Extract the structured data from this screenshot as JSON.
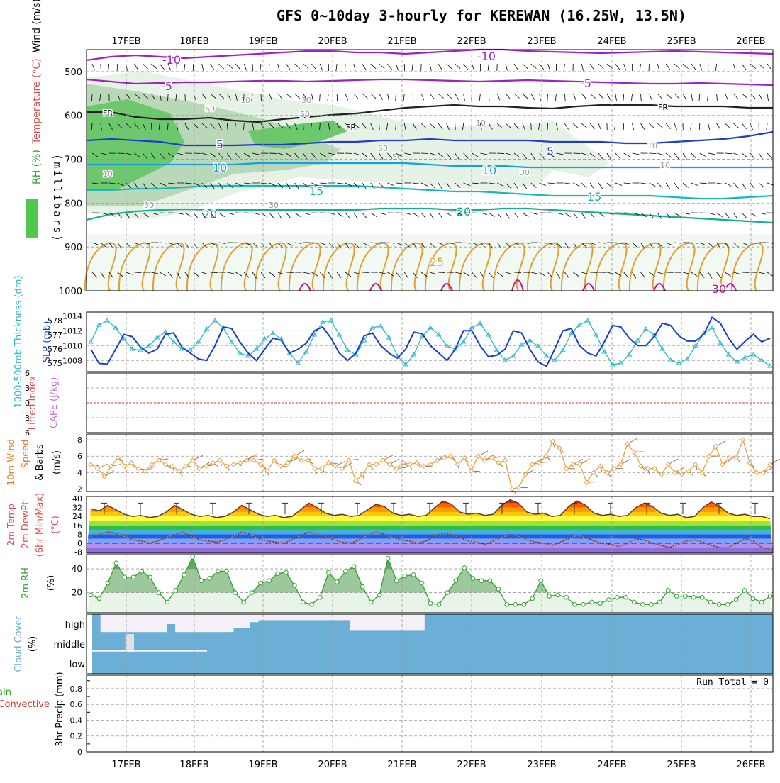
{
  "title": "GFS 0~10day 3-hourly for KEREWAN (16.25W, 13.5N)",
  "colors": {
    "purple": "#a020c8",
    "darkblue": "#1e3cc8",
    "blue": "#2a70d8",
    "lightblue": "#18a0d8",
    "cyan": "#18b8b8",
    "teal": "#10b090",
    "orange": "#e0a030",
    "darkorange": "#d07020",
    "magenta": "#c8108c",
    "green": "#50c850",
    "gray": "#aaaaaa",
    "slpblue": "#1840d0",
    "thkcyan": "#30b8c8",
    "windorange": "#f0a040",
    "rhgreen": "#30a030",
    "cloud": "#6baed6",
    "red": "#e03030"
  },
  "chart_data": [
    {
      "type": "contour",
      "panel": "upper-air",
      "title": "Wind (m/s) Temperature (°C) RH (%)",
      "ylabel_parts": [
        {
          "text": "Wind (m/s)",
          "color": "#000000"
        },
        {
          "text": "Temperature (°C)",
          "color": "#e05050"
        },
        {
          "text": "RH (%)",
          "color": "#30a030"
        }
      ],
      "ylabel2": "(millibars)",
      "y_ticks": [
        500,
        600,
        700,
        800,
        900,
        1000
      ],
      "ylim": [
        450,
        1000
      ],
      "x_dates": [
        "17FEB",
        "18FEB",
        "19FEB",
        "20FEB",
        "21FEB",
        "22FEB",
        "23FEB",
        "24FEB",
        "25FEB",
        "26FEB"
      ],
      "isotherm_labels": [
        "-10",
        "-10",
        "-5",
        "-5",
        "FR",
        "FR",
        "FR",
        "5",
        "5",
        "10",
        "10",
        "15",
        "15",
        "20",
        "20",
        "25",
        "30",
        "10",
        "10",
        "30",
        "50",
        "50",
        "10",
        "50",
        "30",
        "10",
        "10",
        "30",
        "50",
        "50"
      ]
    },
    {
      "type": "line",
      "panel": "slp-thickness",
      "ylabel_left": "1000-500mb Thickness (dm)",
      "ylabel_right": "SLP (mb)",
      "left_ticks": [
        "578",
        "577",
        "576",
        "575"
      ],
      "right_ticks": [
        "1014",
        "1012",
        "1010",
        "1008"
      ],
      "series": [
        {
          "name": "SLP",
          "values": [
            1009.5,
            1007.6,
            1007.5,
            1009.5,
            1011.5,
            1011.2,
            1009.8,
            1009.0,
            1009.5,
            1011.5,
            1011.7,
            1009.8,
            1009.0,
            1008.2,
            1008.0,
            1010.0,
            1012.5,
            1012.3,
            1010.5,
            1009.0,
            1008.0,
            1009.5,
            1011.0,
            1010.7,
            1009.0,
            1009.5,
            1010.3,
            1012.0,
            1012.5,
            1011.0,
            1009.0,
            1008.0,
            1009.0,
            1011.3,
            1011.7,
            1010.0,
            1009.0,
            1008.3,
            1009.5,
            1011.8,
            1011.6,
            1010.0,
            1009.0,
            1008.0,
            1009.5,
            1012.0,
            1012.0,
            1010.0,
            1008.5,
            1008.7,
            1009.5,
            1012.0,
            1011.7,
            1009.5,
            1007.8,
            1007.2,
            1009.5,
            1012.0,
            1012.3,
            1010.0,
            1009.0,
            1008.6,
            1010.5,
            1012.7,
            1012.5,
            1011.0,
            1010.0,
            1010.0,
            1011.2,
            1013.0,
            1012.7,
            1011.3,
            1010.6,
            1010.6,
            1011.5,
            1013.8,
            1013.0,
            1011.0,
            1009.5,
            1010.6,
            1011.5,
            1010.5,
            1011.0
          ]
        },
        {
          "name": "Thickness",
          "values": [
            576.5,
            577.7,
            578.0,
            577.5,
            576.7,
            576.0,
            575.9,
            576.2,
            576.8,
            577.2,
            576.5,
            576.0,
            575.9,
            576.5,
            577.4,
            578.0,
            577.5,
            576.5,
            575.7,
            575.5,
            576.0,
            576.7,
            577.1,
            576.7,
            575.7,
            575.0,
            575.8,
            577.0,
            577.9,
            578.0,
            577.0,
            575.9,
            575.6,
            576.6,
            577.5,
            577.6,
            576.8,
            575.5,
            574.9,
            575.6,
            576.9,
            577.5,
            577.0,
            576.2,
            576.0,
            576.5,
            577.5,
            577.8,
            577.0,
            575.9,
            575.2,
            575.5,
            576.3,
            576.6,
            576.2,
            575.5,
            575.2,
            575.9,
            577.1,
            577.7,
            578.0,
            577.0,
            575.8,
            574.9,
            575.0,
            575.6,
            576.6,
            577.4,
            577.0,
            576.0,
            575.2,
            575.0,
            575.3,
            576.2,
            577.1,
            577.5,
            576.4,
            575.6,
            575.1,
            575.4,
            575.6,
            575.2,
            574.8
          ]
        }
      ]
    },
    {
      "type": "line",
      "panel": "stability",
      "ylabel_parts": [
        {
          "text": "Lifted Index",
          "color": "#e05050"
        },
        {
          "text": "CAPE (J/kg)",
          "color": "#c070d0"
        }
      ],
      "y_ticks": [
        "-6",
        "-3",
        "0",
        "3",
        "6"
      ]
    },
    {
      "type": "line",
      "panel": "wind10m",
      "ylabel_parts": [
        {
          "text": "10m Wind",
          "color": "#e08030"
        },
        {
          "text": "Speed",
          "color": "#e08030"
        },
        {
          "text": "& Barbs",
          "color": "#000000"
        },
        {
          "text": "(m/s)",
          "color": "#000000"
        }
      ],
      "y_ticks": [
        "8",
        "6",
        "4",
        "2"
      ],
      "series": [
        {
          "name": "10m Wind Speed",
          "values": [
            5.0,
            4.5,
            3.5,
            4.8,
            5.8,
            4.8,
            5.2,
            4.5,
            4.2,
            5.0,
            5.5,
            5.0,
            4.8,
            4.2,
            4.8,
            5.5,
            4.5,
            4.8,
            5.2,
            5.5,
            4.8,
            5.0,
            5.2,
            5.5,
            5.5,
            5.0,
            4.2,
            5.5,
            4.8,
            5.2,
            6.0,
            5.5,
            5.5,
            4.5,
            4.5,
            5.2,
            4.8,
            4.5,
            5.5,
            3.0,
            3.8,
            5.0,
            5.0,
            5.5,
            5.0,
            4.5,
            5.2,
            5.0,
            5.2,
            4.8,
            5.0,
            5.5,
            5.8,
            6.0,
            5.0,
            5.8,
            4.2,
            6.0,
            5.5,
            5.8,
            5.2,
            5.5,
            2.0,
            2.2,
            3.8,
            5.0,
            5.2,
            6.0,
            7.8,
            7.0,
            4.5,
            5.0,
            5.0,
            2.8,
            4.0,
            4.8,
            4.0,
            4.5,
            5.0,
            7.5,
            6.5,
            4.8,
            4.5,
            4.5,
            3.8,
            5.0,
            4.0,
            3.8,
            4.2,
            5.0,
            4.0,
            6.0,
            7.2,
            5.0,
            5.8,
            5.8,
            8.0,
            5.2,
            4.0,
            4.0,
            5.0
          ]
        }
      ]
    },
    {
      "type": "area",
      "panel": "temperature",
      "ylabel_parts": [
        {
          "text": "2m Temp",
          "color": "#e05050"
        },
        {
          "text": "2m DewPt",
          "color": "#e05050"
        },
        {
          "text": "(6hr Min/Max)",
          "color": "#e05050"
        },
        {
          "text": "(°C)",
          "color": "#e05050"
        }
      ],
      "y_ticks": [
        "40",
        "32",
        "24",
        "16",
        "8",
        "0",
        "-8"
      ],
      "series": [
        {
          "name": "2m Temp",
          "values": [
            31,
            29,
            34,
            30,
            26,
            24,
            25,
            23,
            24,
            28,
            34,
            30,
            26,
            24,
            25,
            23,
            24,
            28,
            34,
            30,
            26,
            24,
            25,
            23,
            24,
            30,
            36,
            32,
            27,
            25,
            26,
            24,
            25,
            30,
            35,
            33,
            27,
            25,
            26,
            24,
            25,
            32,
            38,
            35,
            28,
            26,
            27,
            25,
            26,
            34,
            39,
            36,
            28,
            26,
            27,
            24,
            25,
            33,
            38,
            34,
            27,
            25,
            26,
            24,
            25,
            32,
            36,
            33,
            27,
            25,
            26,
            23,
            24,
            32,
            37,
            33,
            27,
            25,
            26,
            24,
            24,
            22
          ]
        },
        {
          "name": "2m DewPt",
          "values": [
            6,
            8,
            10,
            9,
            6,
            3,
            2,
            0,
            2,
            5,
            8,
            10,
            6,
            3,
            2,
            1,
            3,
            6,
            10,
            8,
            4,
            2,
            1,
            0,
            3,
            7,
            10,
            8,
            6,
            3,
            1,
            0,
            3,
            7,
            10,
            8,
            5,
            3,
            2,
            0,
            2,
            6,
            9,
            8,
            5,
            2,
            1,
            -1,
            2,
            5,
            8,
            6,
            3,
            1,
            0,
            -2,
            1,
            4,
            7,
            5,
            2,
            0,
            -1,
            -3,
            0,
            4,
            3,
            0,
            -2,
            -4,
            -1,
            2,
            3,
            1,
            -2,
            -4,
            -4,
            0,
            4,
            2,
            -4,
            -5
          ]
        }
      ]
    },
    {
      "type": "area",
      "panel": "rh",
      "ylabel": "2m RH",
      "ylabel_unit": "(%)",
      "y_ticks": [
        "40",
        "20"
      ],
      "series": [
        {
          "name": "2m RH",
          "values": [
            18,
            15,
            28,
            45,
            33,
            33,
            38,
            33,
            20,
            12,
            22,
            35,
            50,
            30,
            32,
            38,
            38,
            20,
            12,
            20,
            28,
            30,
            36,
            37,
            26,
            12,
            10,
            16,
            37,
            29,
            38,
            42,
            25,
            12,
            18,
            49,
            30,
            34,
            35,
            28,
            11,
            10,
            20,
            30,
            41,
            32,
            30,
            30,
            23,
            10,
            10,
            10,
            15,
            30,
            17,
            18,
            16,
            10,
            10,
            12,
            11,
            14,
            16,
            16,
            12,
            10,
            10,
            12,
            22,
            17,
            17,
            16,
            16,
            12,
            10,
            10,
            14,
            22,
            15,
            12,
            17
          ]
        }
      ]
    },
    {
      "type": "area",
      "panel": "cloud",
      "ylabel": "Cloud Cover",
      "ylabel_unit": "(%)",
      "levels": [
        "high",
        "middle",
        "low"
      ],
      "high": [
        100,
        10,
        10,
        10,
        10,
        10,
        10,
        10,
        10,
        50,
        10,
        10,
        10,
        10,
        10,
        10,
        10,
        30,
        30,
        60,
        70,
        70,
        70,
        70,
        70,
        70,
        70,
        70,
        70,
        70,
        70,
        20,
        20,
        20,
        20,
        20,
        20,
        20,
        20,
        20,
        20,
        20,
        20,
        20,
        20,
        20,
        20,
        20,
        20,
        20,
        10,
        10,
        10,
        10,
        20,
        20,
        20,
        20,
        20,
        20,
        30,
        30,
        30,
        30,
        30,
        30,
        30,
        30,
        30,
        30,
        30,
        30,
        30,
        30,
        30,
        30,
        30,
        30,
        30,
        30,
        30,
        30
      ],
      "middle": [
        100,
        100,
        100,
        100,
        0,
        100,
        100,
        100,
        100,
        100,
        100,
        100,
        100,
        100,
        100,
        100,
        100,
        100,
        100,
        100,
        100,
        100,
        100,
        100,
        100,
        100,
        100,
        100,
        100,
        100,
        100,
        100,
        100,
        100,
        100,
        100,
        100,
        100,
        100,
        100,
        100,
        100,
        100,
        100,
        100,
        100,
        100,
        100,
        100,
        100,
        100,
        100,
        100,
        100,
        100,
        100,
        100,
        100,
        100,
        100,
        100,
        100,
        100,
        100,
        100,
        100,
        100,
        100,
        100,
        100,
        100,
        100,
        100,
        100,
        100,
        100,
        100,
        100,
        100,
        100,
        100,
        100
      ]
    },
    {
      "type": "bar",
      "panel": "precip",
      "ylabel_parts": [
        {
          "text": "Total / Rain",
          "color": "#30a030"
        },
        {
          "text": "Convective",
          "color": "#e03030"
        },
        {
          "text": "3hr Precip (mm)",
          "color": "#000000"
        }
      ],
      "y_ticks": [
        "0.8",
        "0.6",
        "0.4",
        "0.2",
        "0"
      ],
      "run_total": "Run Total = 0",
      "values": []
    }
  ]
}
